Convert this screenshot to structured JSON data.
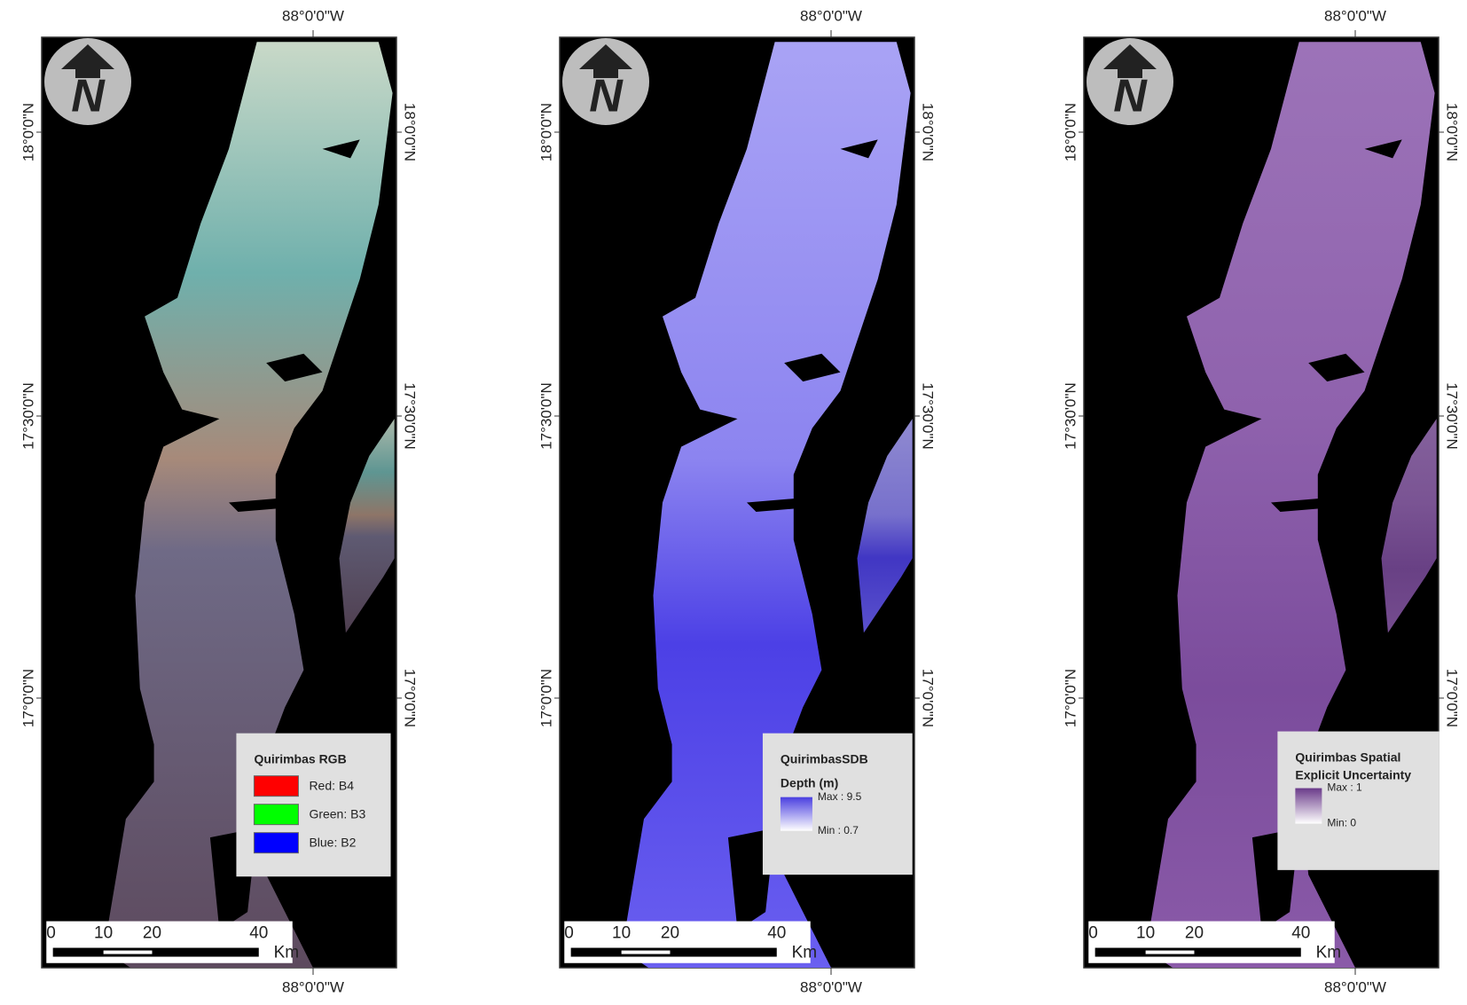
{
  "panels": [
    {
      "top_label": "88°0'0\"W",
      "bottom_label": "88°0'0\"W",
      "left_labels": [
        "18°0'0\"N",
        "17°30'0\"N",
        "17°0'0\"N"
      ],
      "right_labels": [
        "18°0'0\"N",
        "17°30'0\"N",
        "17°0'0\"N"
      ],
      "north": "N",
      "scale": [
        "0",
        "10",
        "20",
        "40",
        "Km"
      ],
      "legend": {
        "title": "Quirimbas RGB",
        "entries": [
          {
            "label": "Red:   B4",
            "color": "#ff0000"
          },
          {
            "label": "Green: B3",
            "color": "#00ff00"
          },
          {
            "label": "Blue:   B2",
            "color": "#0000ff"
          }
        ]
      }
    },
    {
      "top_label": "88°0'0\"W",
      "bottom_label": "88°0'0\"W",
      "left_labels": [
        "18°0'0\"N",
        "17°30'0\"N",
        "17°0'0\"N"
      ],
      "right_labels": [
        "18°0'0\"N",
        "17°30'0\"N",
        "17°0'0\"N"
      ],
      "north": "N",
      "scale": [
        "0",
        "10",
        "20",
        "40",
        "Km"
      ],
      "legend": {
        "title": "QuirimbasSDB",
        "subtitle": "Depth (m)",
        "max": "Max : 9.5",
        "min": "Min : 0.7",
        "color": "#4a3fe0"
      }
    },
    {
      "top_label": "88°0'0\"W",
      "bottom_label": "88°0'0\"W",
      "left_labels": [
        "18°0'0\"N",
        "17°30'0\"N",
        "17°0'0\"N"
      ],
      "right_labels": [
        "18°0'0\"N",
        "17°30'0\"N",
        "17°0'0\"N"
      ],
      "north": "N",
      "scale": [
        "0",
        "10",
        "20",
        "40",
        "Km"
      ],
      "legend": {
        "title": "Quirimbas Spatial",
        "subtitle": "Explicit Uncertainty",
        "max": "Max : 1",
        "min": "Min: 0",
        "color": "#6a3a8a"
      }
    }
  ]
}
